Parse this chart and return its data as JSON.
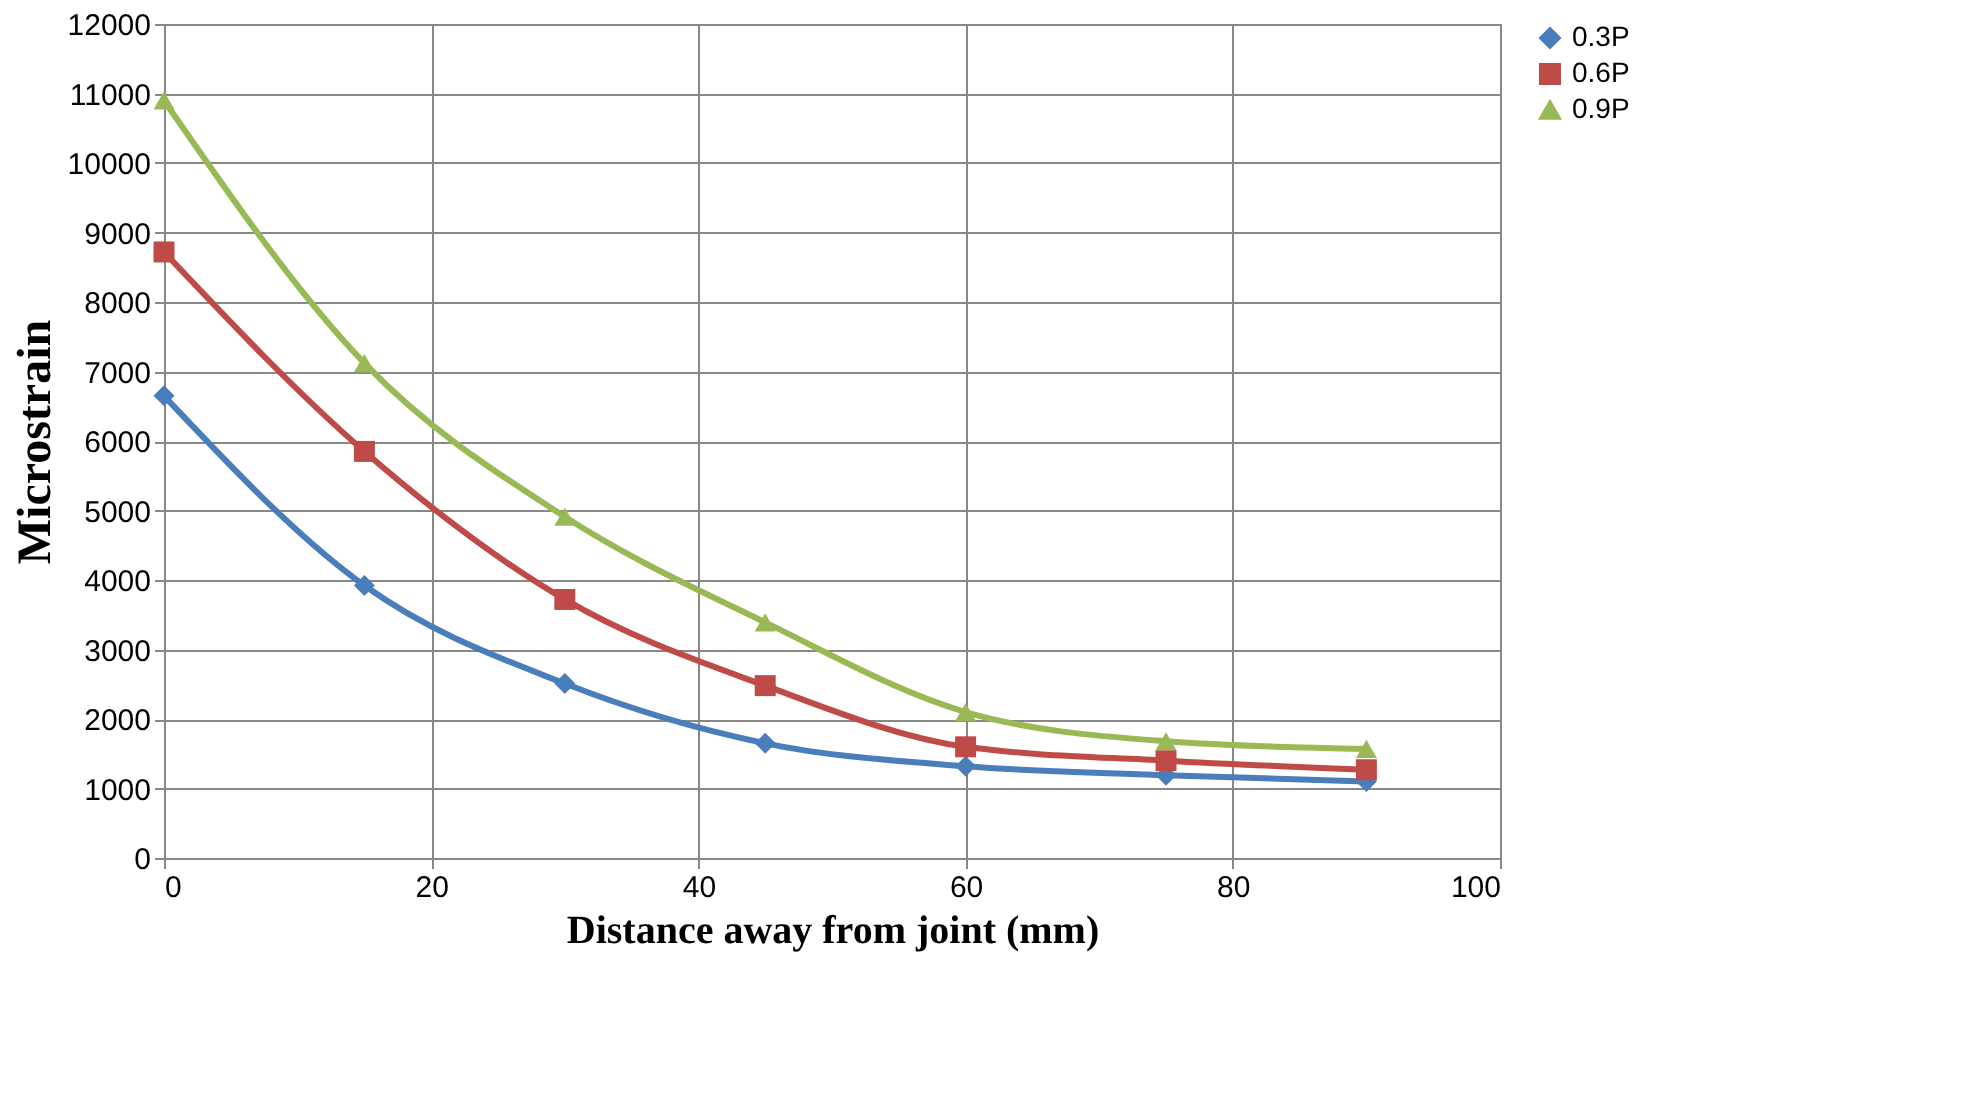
{
  "chart_data": {
    "type": "line",
    "xlabel": "Distance away from joint (mm)",
    "ylabel": "Microstrain",
    "x": [
      0,
      15,
      30,
      45,
      60,
      75,
      90
    ],
    "series": [
      {
        "name": "0.3P",
        "color": "#4a7ebb",
        "marker": "diamond",
        "values": [
          6650,
          3920,
          2510,
          1650,
          1320,
          1190,
          1100
        ]
      },
      {
        "name": "0.6P",
        "color": "#be4b48",
        "marker": "square",
        "values": [
          8720,
          5850,
          3720,
          2480,
          1600,
          1400,
          1270
        ]
      },
      {
        "name": "0.9P",
        "color": "#98b954",
        "marker": "triangle",
        "values": [
          10900,
          7120,
          4910,
          3390,
          2100,
          1680,
          1570
        ]
      }
    ],
    "xlim": [
      0,
      100
    ],
    "xticks": [
      0,
      20,
      40,
      60,
      80,
      100
    ],
    "ylim": [
      0,
      12000
    ],
    "yticks": [
      0,
      1000,
      2000,
      3000,
      4000,
      5000,
      6000,
      7000,
      8000,
      9000,
      10000,
      11000,
      12000
    ],
    "grid": true,
    "legend": "right",
    "line_style": "solid"
  }
}
